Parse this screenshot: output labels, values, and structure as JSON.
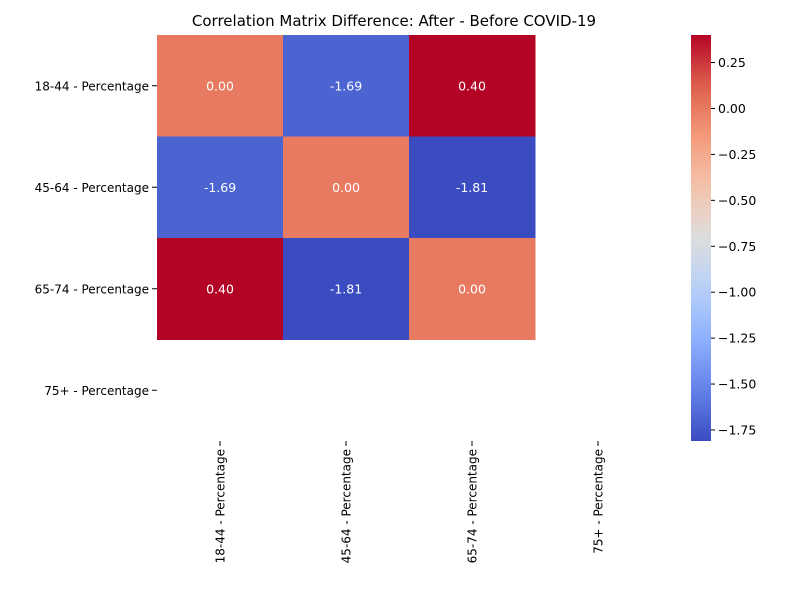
{
  "chart_data": {
    "type": "heatmap",
    "title": "Correlation Matrix Difference: After - Before COVID-19",
    "x_labels": [
      "18-44 - Percentage",
      "45-64 - Percentage",
      "65-74 - Percentage",
      "75+ - Percentage"
    ],
    "y_labels": [
      "18-44 - Percentage",
      "45-64 - Percentage",
      "65-74 - Percentage",
      "75+ - Percentage"
    ],
    "values": [
      [
        0.0,
        -1.69,
        0.4,
        null
      ],
      [
        -1.69,
        0.0,
        -1.81,
        null
      ],
      [
        0.4,
        -1.81,
        0.0,
        null
      ],
      [
        null,
        null,
        null,
        null
      ]
    ],
    "cell_labels": [
      [
        "0.00",
        "-1.69",
        "0.40",
        ""
      ],
      [
        "-1.69",
        "0.00",
        "-1.81",
        ""
      ],
      [
        "0.40",
        "-1.81",
        "0.00",
        ""
      ],
      [
        "",
        "",
        "",
        ""
      ]
    ],
    "colormap": "coolwarm",
    "vmin": -1.81,
    "vmax": 0.4,
    "colorbar_ticks": [
      0.25,
      0.0,
      -0.25,
      -0.5,
      -0.75,
      -1.0,
      -1.25,
      -1.5,
      -1.75
    ],
    "colorbar_tick_labels": [
      "0.25",
      "0.00",
      "−0.25",
      "−0.50",
      "−0.75",
      "−1.00",
      "−1.25",
      "−1.50",
      "−1.75"
    ],
    "colorbar_position": "right",
    "grid": false
  }
}
